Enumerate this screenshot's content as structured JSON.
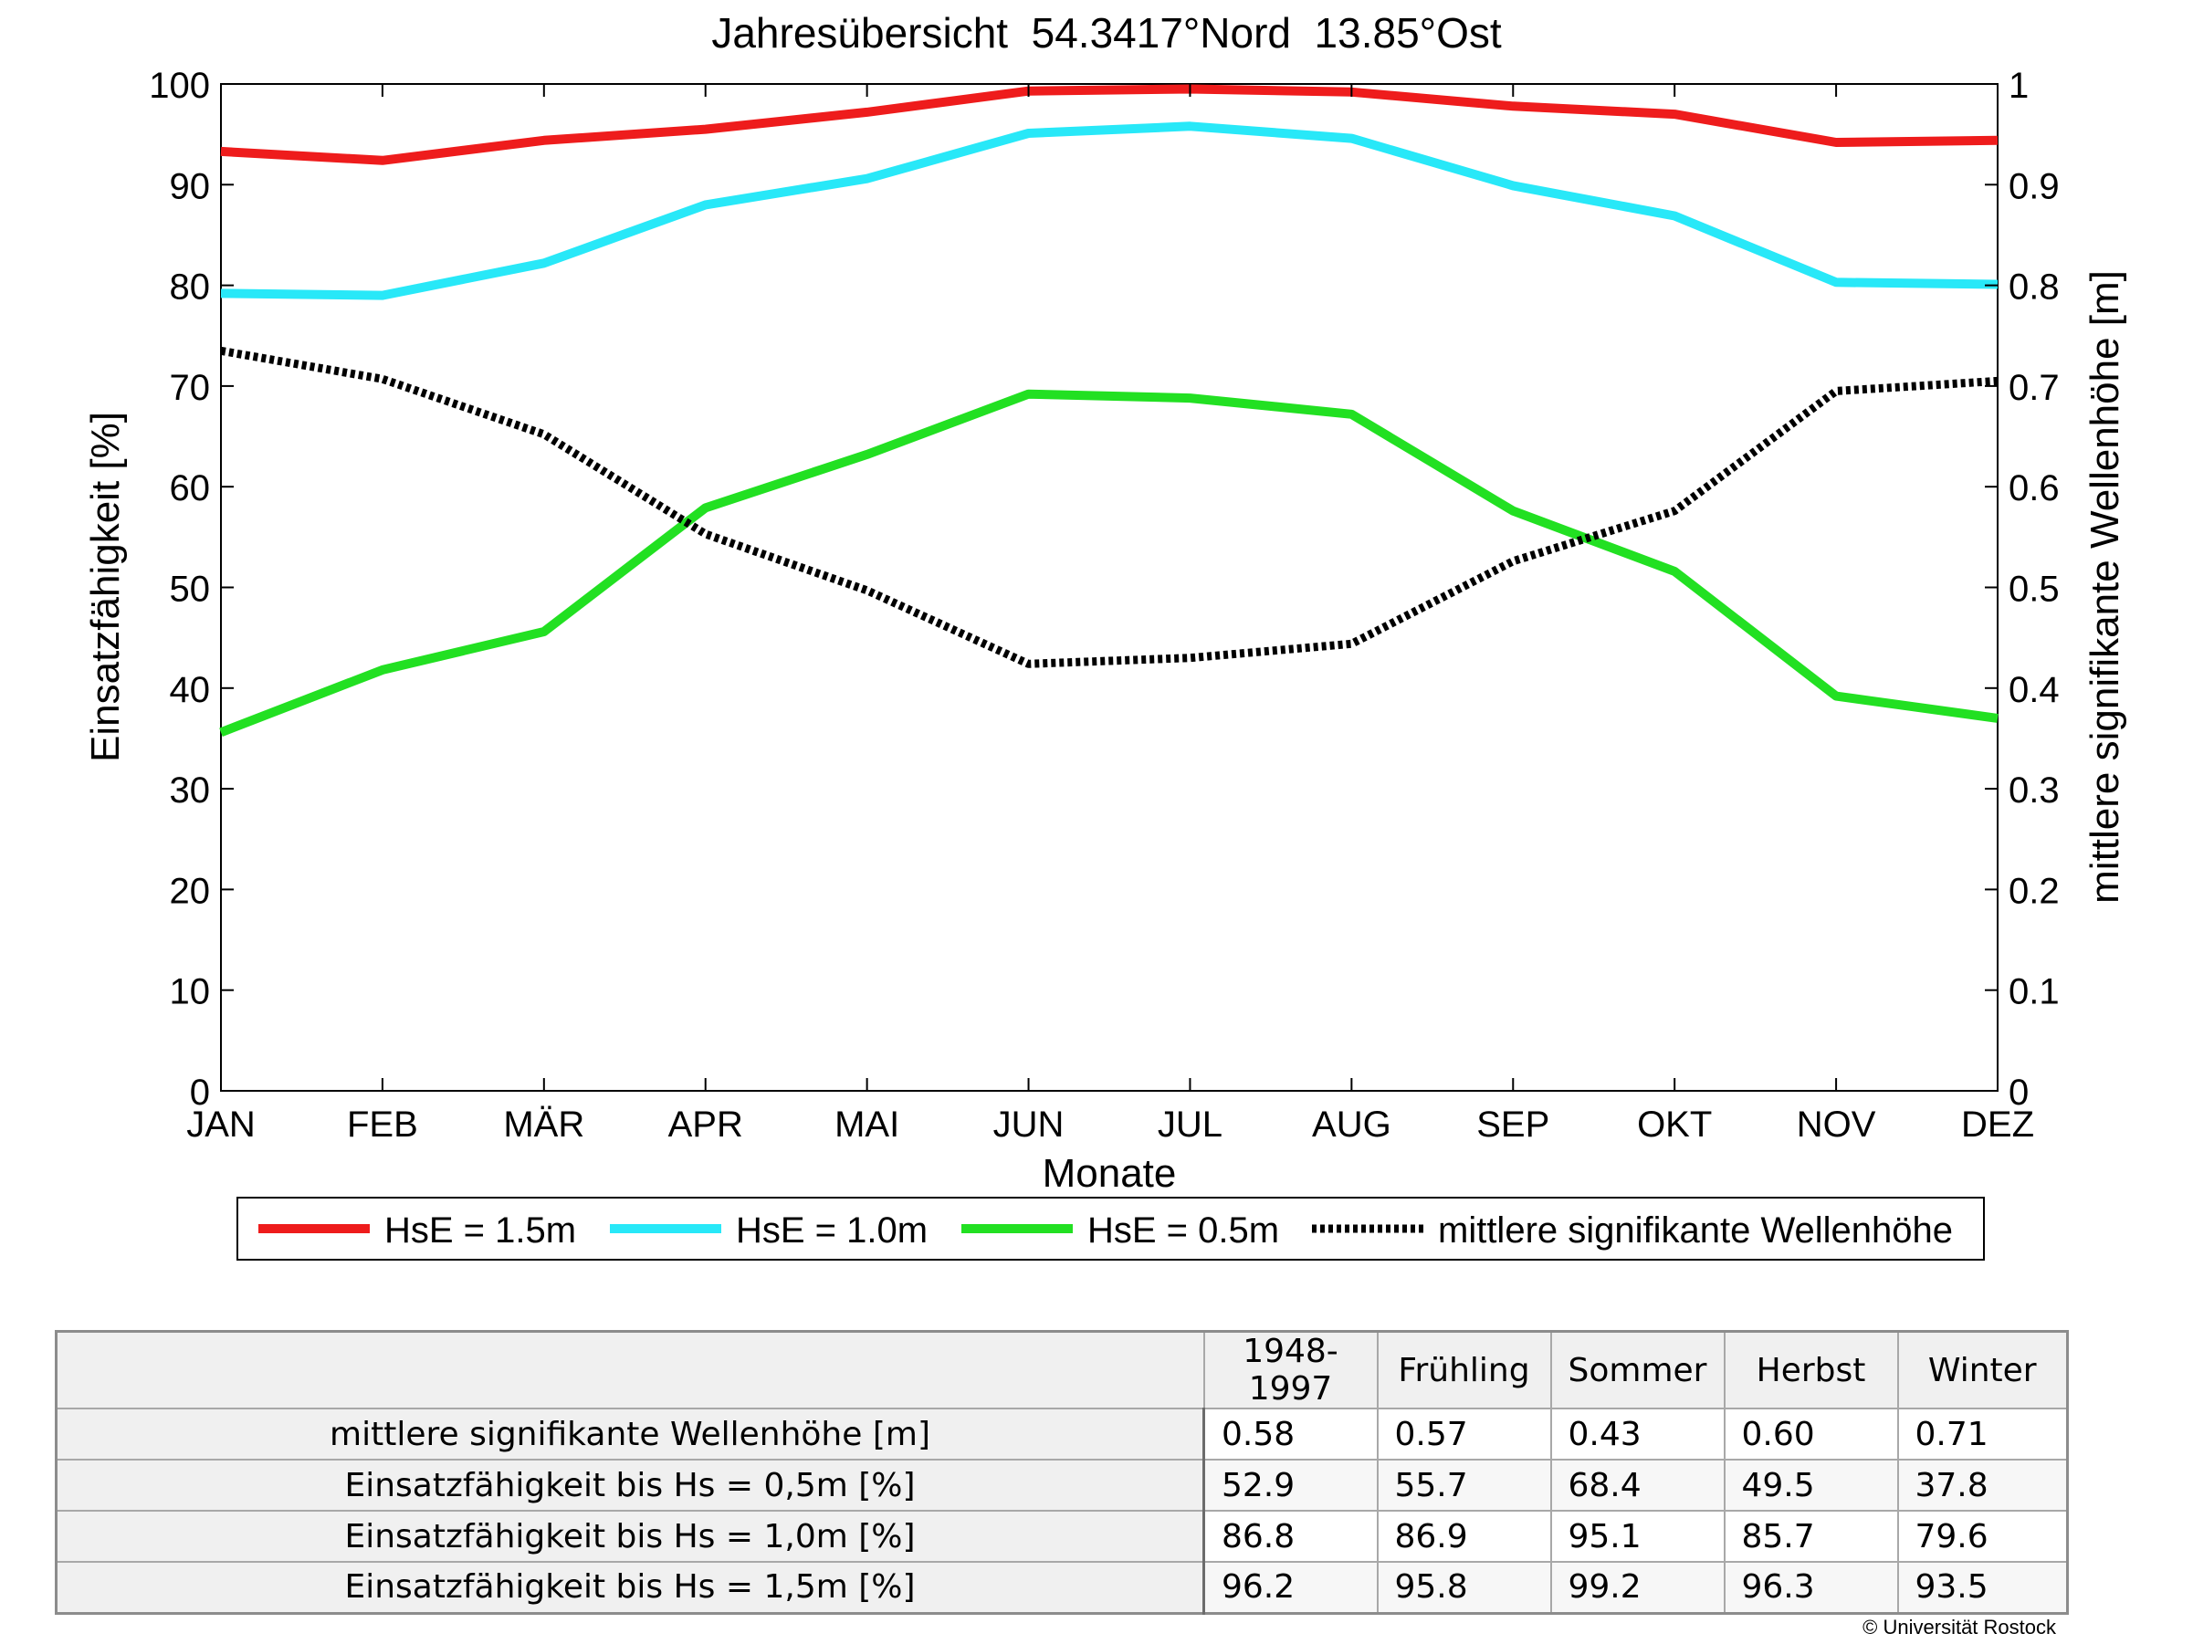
{
  "chart_data": {
    "type": "line",
    "title": "Jahresübersicht  54.3417°Nord  13.85°Ost",
    "xlabel": "Monate",
    "ylabel": "Einsatzfähigkeit [%]",
    "y2label": "mittlere signifikante Wellenhöhe [m]",
    "categories": [
      "JAN",
      "FEB",
      "MÄR",
      "APR",
      "MAI",
      "JUN",
      "JUL",
      "AUG",
      "SEP",
      "OKT",
      "NOV",
      "DEZ"
    ],
    "ylim": [
      0,
      100
    ],
    "y2lim": [
      0,
      1
    ],
    "yticks": [
      "0",
      "10",
      "20",
      "30",
      "40",
      "50",
      "60",
      "70",
      "80",
      "90",
      "100"
    ],
    "y2ticks": [
      "0",
      "0.1",
      "0.2",
      "0.3",
      "0.4",
      "0.5",
      "0.6",
      "0.7",
      "0.8",
      "0.9",
      "1"
    ],
    "legend_position": "bottom",
    "grid": false,
    "series": [
      {
        "name": "HsE = 1.5m",
        "color": "#ee1c1c",
        "axis": "left",
        "style": "solid",
        "values": [
          93.3,
          92.4,
          94.4,
          95.5,
          97.2,
          99.3,
          99.5,
          99.2,
          97.8,
          97.0,
          94.2,
          94.4
        ]
      },
      {
        "name": "HsE = 1.0m",
        "color": "#28e8f8",
        "axis": "left",
        "style": "solid",
        "values": [
          79.2,
          79.0,
          82.2,
          88.0,
          90.6,
          95.1,
          95.8,
          94.6,
          89.9,
          86.9,
          80.3,
          80.1
        ]
      },
      {
        "name": "HsE = 0.5m",
        "color": "#22e022",
        "axis": "left",
        "style": "solid",
        "values": [
          35.6,
          41.8,
          45.6,
          57.9,
          63.2,
          69.2,
          68.8,
          67.2,
          57.6,
          51.6,
          39.2,
          37.0
        ]
      },
      {
        "name": "mittlere signifikante Wellenhöhe",
        "color": "#000000",
        "axis": "right",
        "style": "dotted",
        "values": [
          0.735,
          0.707,
          0.652,
          0.553,
          0.497,
          0.424,
          0.43,
          0.444,
          0.526,
          0.576,
          0.695,
          0.705
        ]
      }
    ]
  },
  "table": {
    "columns": [
      "1948-1997",
      "Frühling",
      "Sommer",
      "Herbst",
      "Winter"
    ],
    "rows": [
      {
        "label": "mittlere signifikante Wellenhöhe [m]",
        "values": [
          "0.58",
          "0.57",
          "0.43",
          "0.60",
          "0.71"
        ]
      },
      {
        "label": "Einsatzfähigkeit bis Hs = 0,5m [%]",
        "values": [
          "52.9",
          "55.7",
          "68.4",
          "49.5",
          "37.8"
        ]
      },
      {
        "label": "Einsatzfähigkeit bis Hs = 1,0m [%]",
        "values": [
          "86.8",
          "86.9",
          "95.1",
          "85.7",
          "79.6"
        ]
      },
      {
        "label": "Einsatzfähigkeit bis Hs = 1,5m [%]",
        "values": [
          "96.2",
          "95.8",
          "99.2",
          "96.3",
          "93.5"
        ]
      }
    ]
  },
  "copyright": "© Universität Rostock"
}
